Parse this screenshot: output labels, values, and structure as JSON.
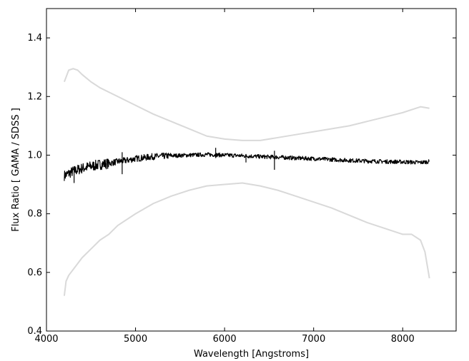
{
  "chart_data": {
    "type": "line",
    "title": "",
    "xlabel": "Wavelength [Angstroms]",
    "ylabel": "Flux Ratio [ GAMA / SDSS ]",
    "xlim": [
      4000,
      8600
    ],
    "ylim": [
      0.4,
      1.5
    ],
    "xticks": [
      4000,
      5000,
      6000,
      7000,
      8000
    ],
    "xtick_labels": [
      "4000",
      "5000",
      "6000",
      "7000",
      "8000"
    ],
    "yticks": [
      0.4,
      0.6,
      0.8,
      1.0,
      1.2,
      1.4
    ],
    "ytick_labels": [
      "0.4",
      "0.6",
      "0.8",
      "1.0",
      "1.2",
      "1.4"
    ],
    "grid": false,
    "legend": "none",
    "series": [
      {
        "role": "median",
        "color": "#000000",
        "x": [
          4200,
          4300,
          4400,
          4500,
          4600,
          4700,
          4800,
          4900,
          5000,
          5200,
          5400,
          5600,
          5800,
          6000,
          6200,
          6400,
          6600,
          6800,
          7000,
          7200,
          7400,
          7600,
          7800,
          8000,
          8200,
          8300
        ],
        "y": [
          0.93,
          0.945,
          0.955,
          0.962,
          0.968,
          0.972,
          0.978,
          0.982,
          0.988,
          0.995,
          0.998,
          1.0,
          1.002,
          1.0,
          0.998,
          0.995,
          0.993,
          0.99,
          0.988,
          0.985,
          0.982,
          0.98,
          0.978,
          0.977,
          0.975,
          0.978
        ]
      },
      {
        "role": "upper-envelope",
        "color": "#d9d9d9",
        "x": [
          4200,
          4250,
          4300,
          4350,
          4400,
          4500,
          4600,
          4700,
          4800,
          5000,
          5200,
          5400,
          5600,
          5800,
          6000,
          6200,
          6400,
          6600,
          6800,
          7000,
          7200,
          7400,
          7600,
          7800,
          8000,
          8200,
          8300
        ],
        "y": [
          1.25,
          1.29,
          1.295,
          1.29,
          1.275,
          1.25,
          1.23,
          1.215,
          1.2,
          1.17,
          1.14,
          1.115,
          1.09,
          1.065,
          1.055,
          1.05,
          1.05,
          1.06,
          1.07,
          1.08,
          1.09,
          1.1,
          1.115,
          1.13,
          1.145,
          1.165,
          1.16
        ]
      },
      {
        "role": "lower-envelope",
        "color": "#d9d9d9",
        "x": [
          4200,
          4220,
          4250,
          4300,
          4400,
          4500,
          4600,
          4700,
          4800,
          5000,
          5200,
          5400,
          5600,
          5800,
          6000,
          6200,
          6400,
          6600,
          6800,
          7000,
          7200,
          7400,
          7600,
          7800,
          8000,
          8100,
          8200,
          8250,
          8300
        ],
        "y": [
          0.52,
          0.57,
          0.59,
          0.61,
          0.65,
          0.68,
          0.71,
          0.73,
          0.76,
          0.8,
          0.835,
          0.86,
          0.88,
          0.895,
          0.9,
          0.905,
          0.895,
          0.88,
          0.86,
          0.84,
          0.82,
          0.795,
          0.77,
          0.75,
          0.73,
          0.73,
          0.71,
          0.67,
          0.58
        ]
      }
    ],
    "annotations": [
      {
        "x": 4310,
        "y_top": 0.96,
        "y_bottom": 0.905
      },
      {
        "x": 4850,
        "y_top": 1.01,
        "y_bottom": 0.935
      },
      {
        "x": 5900,
        "y_top": 1.025,
        "y_bottom": 0.99
      },
      {
        "x": 6240,
        "y_top": 1.0,
        "y_bottom": 0.975
      },
      {
        "x": 6560,
        "y_top": 1.015,
        "y_bottom": 0.95
      }
    ]
  }
}
